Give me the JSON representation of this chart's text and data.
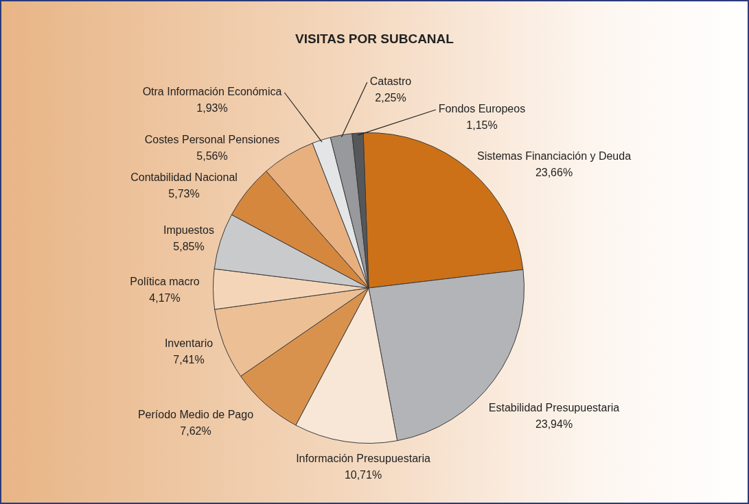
{
  "chart_data": {
    "type": "pie",
    "title": "VISITAS POR SUBCANAL",
    "categories": [
      "Sistemas Financiación y Deuda",
      "Estabilidad Presupuestaria",
      "Información Presupuestaria",
      "Período Medio de Pago",
      "Inventario",
      "Política macro",
      "Impuestos",
      "Contabilidad Nacional",
      "Costes Personal Pensiones",
      "Otra Información Económica",
      "Catastro",
      "Fondos Europeos"
    ],
    "values": [
      23.66,
      23.94,
      10.71,
      7.62,
      7.41,
      4.17,
      5.85,
      5.73,
      5.56,
      1.93,
      2.25,
      1.15
    ],
    "value_labels": [
      "23,66%",
      "23,94%",
      "10,71%",
      "7,62%",
      "7,41%",
      "4,17%",
      "5,85%",
      "5,73%",
      "5,56%",
      "1,93%",
      "2,25%",
      "1,15%"
    ],
    "colors": [
      "#cc7118",
      "#b3b4b8",
      "#f8e7d6",
      "#d9924e",
      "#ecbf94",
      "#f5d5b8",
      "#c9cacc",
      "#d6873e",
      "#e8b07e",
      "#e4e5e7",
      "#98999c",
      "#56575a"
    ],
    "legend": false
  }
}
